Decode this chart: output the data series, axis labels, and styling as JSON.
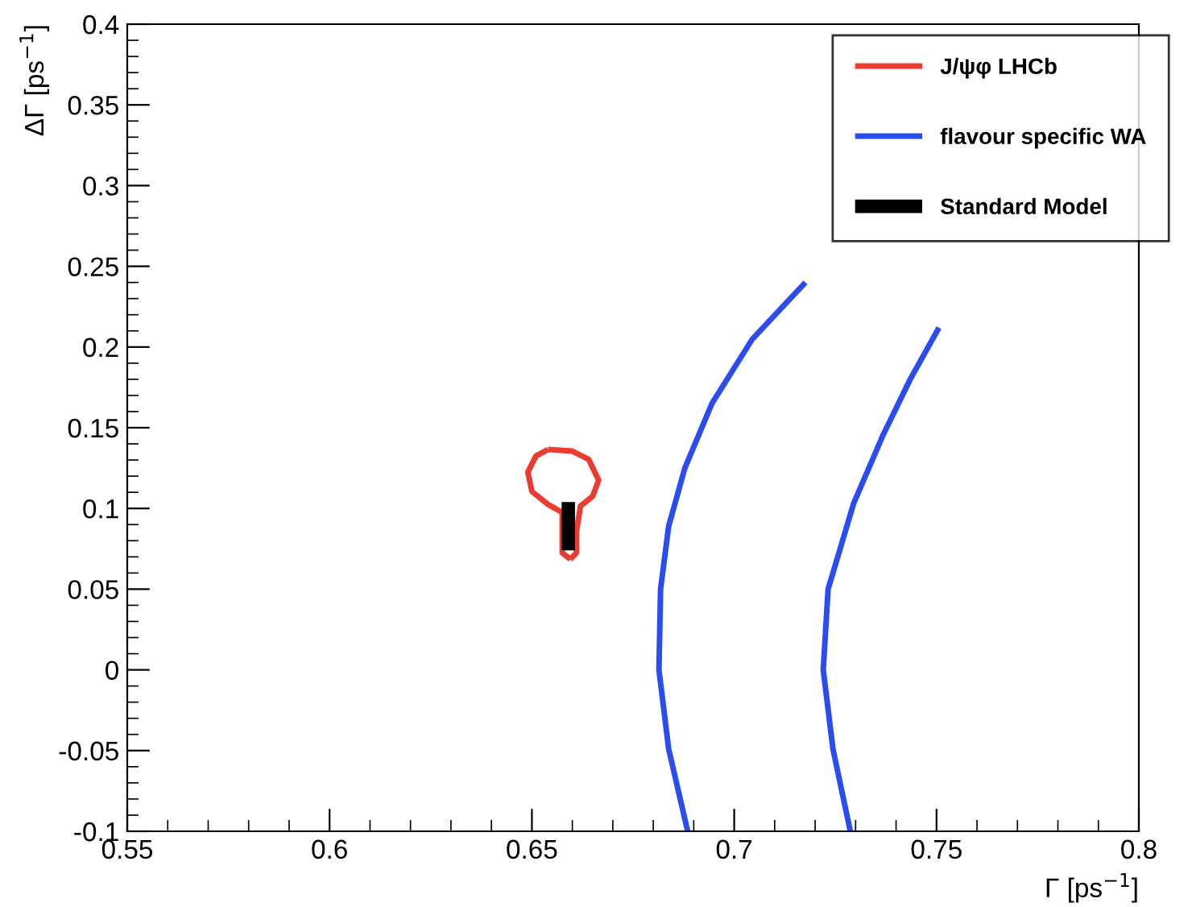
{
  "chart_data": {
    "type": "line",
    "xlabel": "Γ [ps$^{−1}$]",
    "ylabel": "ΔΓ [ps$^{−1}$]",
    "xlim": [
      0.55,
      0.8
    ],
    "xticks": [
      0.55,
      0.6,
      0.65,
      0.7,
      0.75,
      0.8
    ],
    "ylim": [
      -0.1,
      0.4
    ],
    "yticks": [
      -0.1,
      -0.05,
      0,
      0.05,
      0.1,
      0.15,
      0.2,
      0.25,
      0.3,
      0.35,
      0.4
    ],
    "grid": false,
    "legend": "top right",
    "marker": "none",
    "line_style": "solid",
    "series": [
      {
        "name": "J/ψφ LHCb",
        "color": "#ee3b30",
        "x": [
          0.654,
          0.651,
          0.649,
          0.65,
          0.654,
          0.6575,
          0.6575,
          0.6595,
          null,
          0.654,
          0.66,
          0.664,
          0.6665,
          0.665,
          0.662,
          0.661,
          0.661,
          0.6595
        ],
        "values": [
          0.1365,
          0.1325,
          0.1225,
          0.1105,
          0.1025,
          0.0975,
          0.0725,
          0.0685,
          null,
          0.1365,
          0.1355,
          0.1305,
          0.1175,
          0.1075,
          0.1015,
          0.0855,
          0.0725,
          0.0685
        ]
      },
      {
        "name": "flavour specific WA",
        "color": "#2a4cf0",
        "x": [
          0.6885,
          0.6838,
          0.6814,
          0.6818,
          0.6838,
          0.6878,
          0.6945,
          0.7045,
          0.7176,
          null,
          0.7287,
          0.7244,
          0.722,
          0.7232,
          0.7295,
          0.7367,
          0.7435,
          0.7506
        ],
        "values": [
          -0.1,
          -0.049,
          0.0,
          0.05,
          0.089,
          0.125,
          0.165,
          0.205,
          0.24,
          null,
          -0.1,
          -0.049,
          0.0,
          0.05,
          0.103,
          0.145,
          0.18,
          0.212
        ]
      },
      {
        "name": "Standard Model",
        "color": "#000000",
        "x": [
          0.659,
          0.659
        ],
        "values": [
          0.074,
          0.104
        ]
      }
    ]
  }
}
